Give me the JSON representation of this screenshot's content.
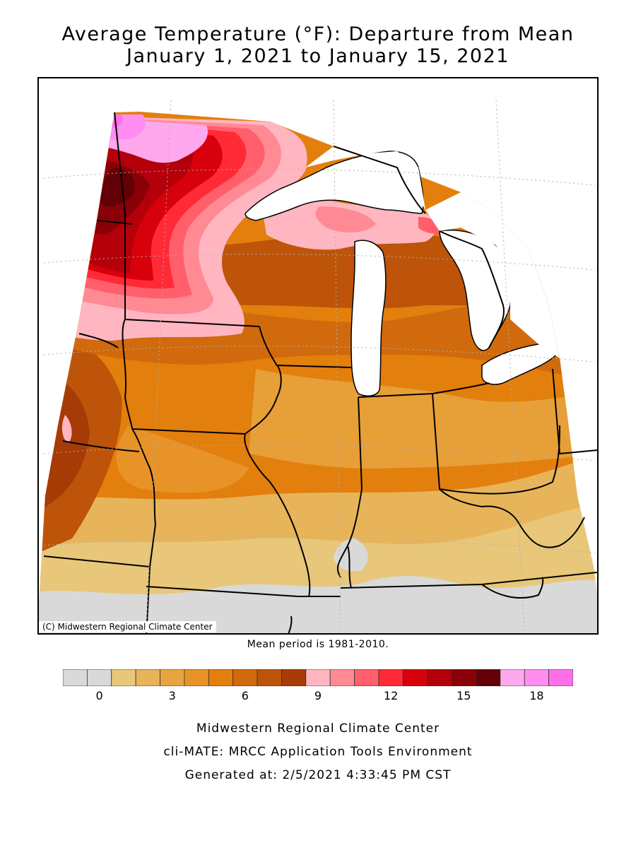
{
  "title": {
    "line1": "Average Temperature (°F): Departure from Mean",
    "line2": "January 1, 2021 to January 15, 2021"
  },
  "map": {
    "credit": "(C) Midwestern Regional Climate Center",
    "mean_period": "Mean period is 1981-2010."
  },
  "legend": {
    "colors": [
      "#d9d9d9",
      "#d9d9d9",
      "#e8c77a",
      "#e7b45a",
      "#e8a43f",
      "#e79328",
      "#e37f0d",
      "#d06a0c",
      "#bd5409",
      "#a63b06",
      "#ffb6c1",
      "#ff8a94",
      "#ff5f6b",
      "#ff2a36",
      "#d8000b",
      "#b3000a",
      "#8a0008",
      "#620005",
      "#ffa8ee",
      "#ff8ef0",
      "#ff6fe9"
    ],
    "tick_labels": [
      "0",
      "3",
      "6",
      "9",
      "12",
      "15",
      "18"
    ],
    "tick_values": [
      0,
      3,
      6,
      9,
      12,
      15,
      18
    ]
  },
  "footer": {
    "line1": "Midwestern Regional Climate Center",
    "line2": "cli-MATE: MRCC Application Tools Environment",
    "line3": "Generated at: 2/5/2021 4:33:45 PM CST"
  }
}
